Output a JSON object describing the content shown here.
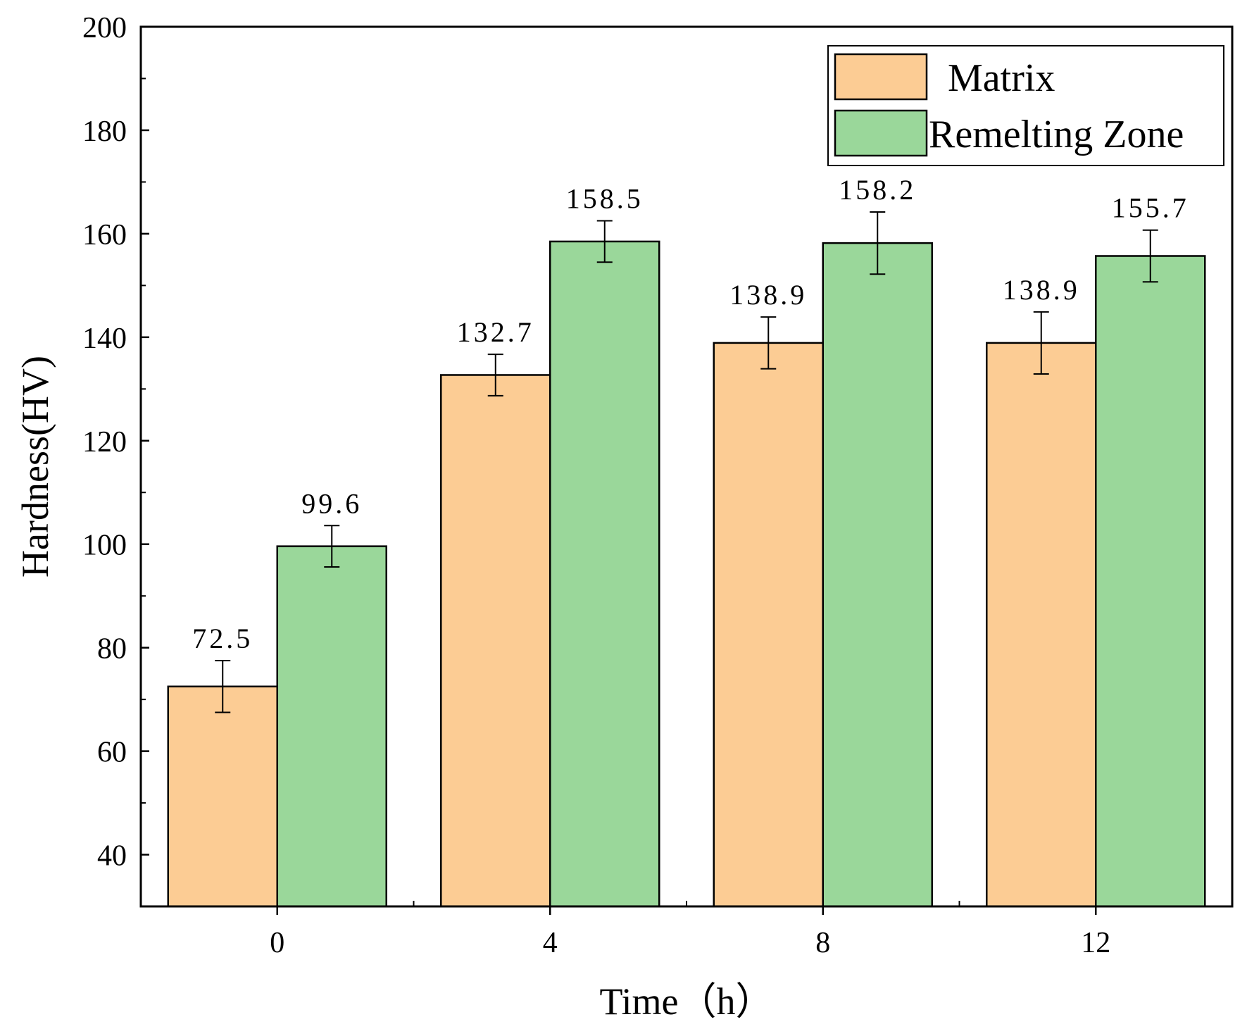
{
  "chart_data": {
    "type": "bar",
    "title": "",
    "xlabel": "Time（h）",
    "ylabel": "Hardness(HV)",
    "categories": [
      "0",
      "4",
      "8",
      "12"
    ],
    "ylim": [
      30,
      200
    ],
    "yticks": [
      40,
      60,
      80,
      100,
      120,
      140,
      160,
      180,
      200
    ],
    "yticks_labeled": [
      "40",
      "60",
      "80",
      "100",
      "120",
      "140",
      "160",
      "180",
      "200"
    ],
    "legend_position": "top-right",
    "grid": false,
    "series": [
      {
        "name": "Matrix",
        "color": "#FCCC94",
        "values": [
          72.5,
          132.7,
          138.9,
          138.9
        ],
        "labels": [
          "72.5",
          "132.7",
          "138.9",
          "138.9"
        ],
        "errors": [
          5,
          4,
          5,
          6
        ]
      },
      {
        "name": "Remelting Zone",
        "color": "#9AD79A",
        "values": [
          99.6,
          158.5,
          158.2,
          155.7
        ],
        "labels": [
          "99.6",
          "158.5",
          "158.2",
          "155.7"
        ],
        "errors": [
          4,
          4,
          6,
          5
        ]
      }
    ]
  }
}
